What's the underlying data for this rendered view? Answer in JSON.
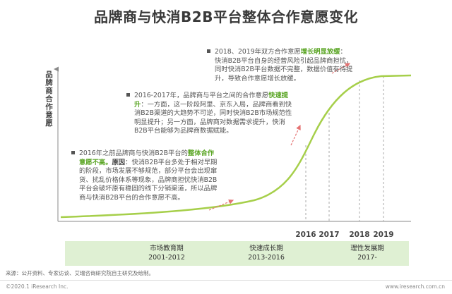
{
  "title": "品牌商与快消B2B平台整体合作意愿变化",
  "ylabel": "品牌商合作意愿",
  "notes": [
    {
      "pre": "2018、2019年双方合作意愿",
      "hl": "增长明显放缓",
      "post": "：快消B2B平台自身的经营风险引起品牌商担忧，同时快消B2B平台数据不完整，数据价值有待提升，导致合作意愿增长放缓。"
    },
    {
      "pre": "2016-2017年，品牌商与平台之间的合作意愿",
      "hl": "快速提升",
      "post": "：一方面，这一阶段阿里、京东入局，品牌商看到快消B2B渠道的大趋势不可逆，同时快消B2B市场规范性明显提升；另一方面，品牌商对数据需求提升，快消B2B平台能够为品牌商数据赋能。"
    },
    {
      "pre": "2016年之前品牌商与快消B2B平台的",
      "hl": "整体合作意愿不高。",
      "hl2": "原因",
      "post": "：快消B2B平台多处于相对早期的阶段，市场发展不够规范，部分平台会出现窜货、扰乱价格体系等现象，品牌商担忧快消B2B平台会破坏原有稳固的线下分销渠道，所以品牌商与快消B2B平台的合作意愿不高。"
    }
  ],
  "years": [
    "2016",
    "2017",
    "2018",
    "2019"
  ],
  "phases": [
    {
      "name": "市场教育期",
      "period": "2001-2012"
    },
    {
      "name": "快速成长期",
      "period": "2013-2016"
    },
    {
      "name": "理性发展期",
      "period": "2017-"
    }
  ],
  "source": "来源：公开资料、专家访谈、艾瑞咨询研究院自主研究及绘制。",
  "copyright": "©2020.1 iResearch Inc.",
  "site": "www.iresearch.com.cn",
  "colors": {
    "curve": "#a6cf4a",
    "arrow": "#e57373",
    "phase_bg": "#dff0d3",
    "highlight": "#5aa524"
  }
}
